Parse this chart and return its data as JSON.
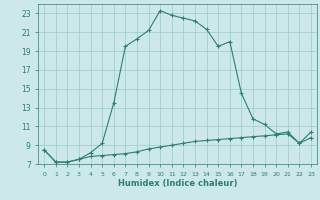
{
  "x": [
    0,
    1,
    2,
    3,
    4,
    5,
    6,
    7,
    8,
    9,
    10,
    11,
    12,
    13,
    14,
    15,
    16,
    17,
    18,
    19,
    20,
    21,
    22,
    23
  ],
  "humidex": [
    8.5,
    7.2,
    7.2,
    7.5,
    8.2,
    9.2,
    13.5,
    19.5,
    20.3,
    21.2,
    23.3,
    22.8,
    22.5,
    22.2,
    21.3,
    19.5,
    20.0,
    14.5,
    11.8,
    11.2,
    10.2,
    10.4,
    9.2,
    10.4
  ],
  "temp": [
    8.5,
    7.2,
    7.2,
    7.5,
    7.8,
    7.9,
    8.0,
    8.1,
    8.3,
    8.6,
    8.8,
    9.0,
    9.2,
    9.4,
    9.5,
    9.6,
    9.7,
    9.8,
    9.9,
    10.0,
    10.1,
    10.2,
    9.2,
    9.8
  ],
  "line_color": "#2e7f6e",
  "bg_color": "#cce8e8",
  "grid_color": "#99cccc",
  "xlabel": "Humidex (Indice chaleur)",
  "ylim": [
    7,
    24
  ],
  "xlim": [
    -0.5,
    23.5
  ],
  "yticks": [
    7,
    9,
    11,
    13,
    15,
    17,
    19,
    21,
    23
  ],
  "xticks": [
    0,
    1,
    2,
    3,
    4,
    5,
    6,
    7,
    8,
    9,
    10,
    11,
    12,
    13,
    14,
    15,
    16,
    17,
    18,
    19,
    20,
    21,
    22,
    23
  ]
}
